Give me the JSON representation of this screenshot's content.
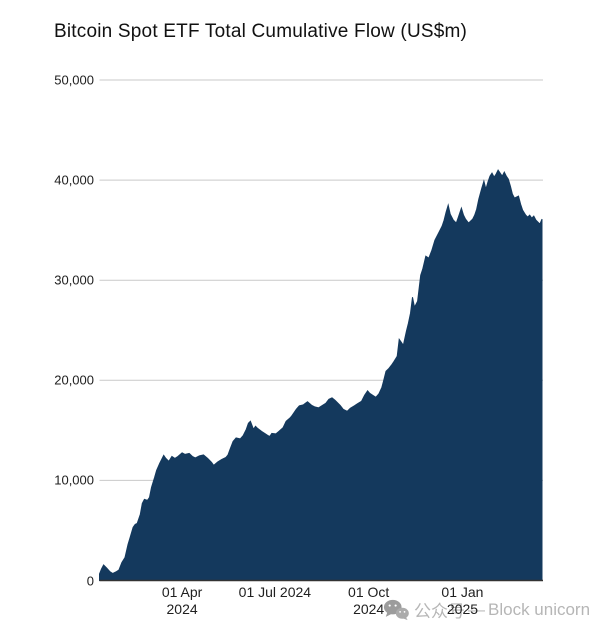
{
  "title": "Bitcoin Spot ETF Total Cumulative Flow (US$m)",
  "watermark": {
    "icon": "wechat-icon",
    "cn": "公众号",
    "separator": "—",
    "en": "Block unicorn"
  },
  "chart_data": {
    "type": "area",
    "title": "Bitcoin Spot ETF Total Cumulative Flow (US$m)",
    "unit": "US$m",
    "grid": true,
    "legend": false,
    "colors": {
      "area_fill": "#14395d",
      "gridline": "#c9c9c9",
      "baseline": "#333333",
      "axis_text": "#202020",
      "watermark": "#b6b6b6"
    },
    "ylim": [
      0,
      50000
    ],
    "x_domain": [
      "2024-01-11",
      "2025-03-21"
    ],
    "y_ticks": [
      {
        "value": 0,
        "label": "0"
      },
      {
        "value": 10000,
        "label": "10,000"
      },
      {
        "value": 20000,
        "label": "20,000"
      },
      {
        "value": 30000,
        "label": "30,000"
      },
      {
        "value": 40000,
        "label": "40,000"
      },
      {
        "value": 50000,
        "label": "50,000"
      }
    ],
    "x_ticks": [
      {
        "date": "2024-04-01",
        "lines": [
          "01 Apr",
          "2024"
        ]
      },
      {
        "date": "2024-07-01",
        "lines": [
          "01 Jul 2024"
        ]
      },
      {
        "date": "2024-10-01",
        "lines": [
          "01 Oct",
          "2024"
        ]
      },
      {
        "date": "2025-01-01",
        "lines": [
          "01 Jan",
          "2025"
        ]
      }
    ],
    "series": [
      {
        "name": "Total Cumulative Flow",
        "color": "#14395d",
        "points": [
          [
            "2024-01-11",
            650
          ],
          [
            "2024-01-13",
            1150
          ],
          [
            "2024-01-15",
            1550
          ],
          [
            "2024-01-18",
            1250
          ],
          [
            "2024-01-21",
            900
          ],
          [
            "2024-01-24",
            700
          ],
          [
            "2024-01-27",
            850
          ],
          [
            "2024-01-30",
            1050
          ],
          [
            "2024-02-02",
            1800
          ],
          [
            "2024-02-05",
            2300
          ],
          [
            "2024-02-08",
            3600
          ],
          [
            "2024-02-10",
            4300
          ],
          [
            "2024-02-13",
            5300
          ],
          [
            "2024-02-15",
            5600
          ],
          [
            "2024-02-17",
            5700
          ],
          [
            "2024-02-20",
            6600
          ],
          [
            "2024-02-22",
            7700
          ],
          [
            "2024-02-24",
            8100
          ],
          [
            "2024-02-27",
            8000
          ],
          [
            "2024-02-29",
            8300
          ],
          [
            "2024-03-02",
            9300
          ],
          [
            "2024-03-05",
            10300
          ],
          [
            "2024-03-07",
            11000
          ],
          [
            "2024-03-10",
            11700
          ],
          [
            "2024-03-12",
            12100
          ],
          [
            "2024-03-14",
            12500
          ],
          [
            "2024-03-16",
            12200
          ],
          [
            "2024-03-19",
            11900
          ],
          [
            "2024-03-22",
            12400
          ],
          [
            "2024-03-25",
            12200
          ],
          [
            "2024-03-28",
            12400
          ],
          [
            "2024-04-01",
            12750
          ],
          [
            "2024-04-04",
            12600
          ],
          [
            "2024-04-08",
            12700
          ],
          [
            "2024-04-11",
            12400
          ],
          [
            "2024-04-14",
            12250
          ],
          [
            "2024-04-18",
            12450
          ],
          [
            "2024-04-22",
            12550
          ],
          [
            "2024-04-26",
            12200
          ],
          [
            "2024-04-30",
            11800
          ],
          [
            "2024-05-02",
            11500
          ],
          [
            "2024-05-06",
            11850
          ],
          [
            "2024-05-10",
            12100
          ],
          [
            "2024-05-14",
            12300
          ],
          [
            "2024-05-16",
            12550
          ],
          [
            "2024-05-18",
            13100
          ],
          [
            "2024-05-21",
            13900
          ],
          [
            "2024-05-24",
            14250
          ],
          [
            "2024-05-28",
            14150
          ],
          [
            "2024-05-31",
            14500
          ],
          [
            "2024-06-03",
            15100
          ],
          [
            "2024-06-05",
            15700
          ],
          [
            "2024-06-07",
            15900
          ],
          [
            "2024-06-10",
            15100
          ],
          [
            "2024-06-12",
            15400
          ],
          [
            "2024-06-14",
            15200
          ],
          [
            "2024-06-18",
            14900
          ],
          [
            "2024-06-21",
            14700
          ],
          [
            "2024-06-24",
            14500
          ],
          [
            "2024-06-26",
            14400
          ],
          [
            "2024-06-28",
            14700
          ],
          [
            "2024-07-02",
            14650
          ],
          [
            "2024-07-05",
            14900
          ],
          [
            "2024-07-09",
            15250
          ],
          [
            "2024-07-12",
            15900
          ],
          [
            "2024-07-16",
            16250
          ],
          [
            "2024-07-18",
            16500
          ],
          [
            "2024-07-22",
            17100
          ],
          [
            "2024-07-25",
            17450
          ],
          [
            "2024-07-29",
            17550
          ],
          [
            "2024-07-31",
            17700
          ],
          [
            "2024-08-02",
            17850
          ],
          [
            "2024-08-06",
            17500
          ],
          [
            "2024-08-09",
            17350
          ],
          [
            "2024-08-13",
            17250
          ],
          [
            "2024-08-16",
            17450
          ],
          [
            "2024-08-20",
            17700
          ],
          [
            "2024-08-23",
            18100
          ],
          [
            "2024-08-26",
            18250
          ],
          [
            "2024-08-29",
            18000
          ],
          [
            "2024-09-03",
            17500
          ],
          [
            "2024-09-06",
            17100
          ],
          [
            "2024-09-10",
            16900
          ],
          [
            "2024-09-13",
            17200
          ],
          [
            "2024-09-17",
            17450
          ],
          [
            "2024-09-20",
            17650
          ],
          [
            "2024-09-24",
            17900
          ],
          [
            "2024-09-27",
            18500
          ],
          [
            "2024-09-30",
            18950
          ],
          [
            "2024-10-02",
            18700
          ],
          [
            "2024-10-05",
            18500
          ],
          [
            "2024-10-08",
            18300
          ],
          [
            "2024-10-11",
            18650
          ],
          [
            "2024-10-14",
            19300
          ],
          [
            "2024-10-16",
            20100
          ],
          [
            "2024-10-18",
            20900
          ],
          [
            "2024-10-21",
            21200
          ],
          [
            "2024-10-24",
            21600
          ],
          [
            "2024-10-26",
            21900
          ],
          [
            "2024-10-29",
            22400
          ],
          [
            "2024-10-31",
            24100
          ],
          [
            "2024-11-02",
            23800
          ],
          [
            "2024-11-04",
            23500
          ],
          [
            "2024-11-07",
            24900
          ],
          [
            "2024-11-09",
            25700
          ],
          [
            "2024-11-11",
            26700
          ],
          [
            "2024-11-13",
            28300
          ],
          [
            "2024-11-15",
            27300
          ],
          [
            "2024-11-18",
            27900
          ],
          [
            "2024-11-21",
            30500
          ],
          [
            "2024-11-23",
            31100
          ],
          [
            "2024-11-26",
            32400
          ],
          [
            "2024-11-29",
            32200
          ],
          [
            "2024-12-02",
            33000
          ],
          [
            "2024-12-05",
            34000
          ],
          [
            "2024-12-09",
            34800
          ],
          [
            "2024-12-12",
            35400
          ],
          [
            "2024-12-14",
            36000
          ],
          [
            "2024-12-16",
            36800
          ],
          [
            "2024-12-18",
            37500
          ],
          [
            "2024-12-20",
            36600
          ],
          [
            "2024-12-23",
            36000
          ],
          [
            "2024-12-26",
            35700
          ],
          [
            "2024-12-28",
            36300
          ],
          [
            "2024-12-31",
            37200
          ],
          [
            "2025-01-02",
            36500
          ],
          [
            "2025-01-04",
            36100
          ],
          [
            "2025-01-07",
            35700
          ],
          [
            "2025-01-09",
            35900
          ],
          [
            "2025-01-11",
            36100
          ],
          [
            "2025-01-13",
            36500
          ],
          [
            "2025-01-15",
            37100
          ],
          [
            "2025-01-17",
            38100
          ],
          [
            "2025-01-20",
            39200
          ],
          [
            "2025-01-22",
            39900
          ],
          [
            "2025-01-24",
            39100
          ],
          [
            "2025-01-26",
            39800
          ],
          [
            "2025-01-28",
            40400
          ],
          [
            "2025-01-30",
            40700
          ],
          [
            "2025-02-01",
            40300
          ],
          [
            "2025-02-03",
            40600
          ],
          [
            "2025-02-05",
            41000
          ],
          [
            "2025-02-07",
            40700
          ],
          [
            "2025-02-09",
            40400
          ],
          [
            "2025-02-11",
            40800
          ],
          [
            "2025-02-13",
            40400
          ],
          [
            "2025-02-15",
            40100
          ],
          [
            "2025-02-17",
            39400
          ],
          [
            "2025-02-19",
            38600
          ],
          [
            "2025-02-21",
            38200
          ],
          [
            "2025-02-23",
            38300
          ],
          [
            "2025-02-25",
            38400
          ],
          [
            "2025-02-27",
            37600
          ],
          [
            "2025-03-01",
            37000
          ],
          [
            "2025-03-04",
            36500
          ],
          [
            "2025-03-06",
            36300
          ],
          [
            "2025-03-08",
            36500
          ],
          [
            "2025-03-10",
            36200
          ],
          [
            "2025-03-12",
            36400
          ],
          [
            "2025-03-14",
            36000
          ],
          [
            "2025-03-16",
            35800
          ],
          [
            "2025-03-18",
            35600
          ],
          [
            "2025-03-20",
            36100
          ]
        ]
      }
    ]
  }
}
